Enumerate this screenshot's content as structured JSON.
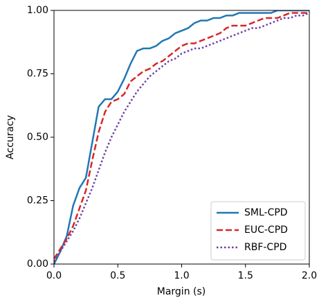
{
  "chart_data": {
    "type": "line",
    "x_label": "Margin (s)",
    "y_label": "Accuracy",
    "x": [
      0,
      0.05,
      0.1,
      0.15,
      0.2,
      0.25,
      0.3,
      0.35,
      0.4,
      0.45,
      0.5,
      0.55,
      0.6,
      0.65,
      0.7,
      0.75,
      0.8,
      0.85,
      0.9,
      0.95,
      1.0,
      1.05,
      1.1,
      1.15,
      1.2,
      1.25,
      1.3,
      1.35,
      1.4,
      1.45,
      1.5,
      1.55,
      1.6,
      1.65,
      1.7,
      1.75,
      1.8,
      1.85,
      1.9,
      1.95,
      2.0
    ],
    "series": [
      {
        "name": "SML-CPD",
        "color": "#1f77b4",
        "style": "solid",
        "values": [
          0.0,
          0.05,
          0.11,
          0.23,
          0.3,
          0.34,
          0.48,
          0.62,
          0.65,
          0.65,
          0.68,
          0.73,
          0.79,
          0.84,
          0.85,
          0.85,
          0.86,
          0.88,
          0.89,
          0.91,
          0.92,
          0.93,
          0.95,
          0.96,
          0.96,
          0.97,
          0.97,
          0.98,
          0.98,
          0.99,
          0.99,
          0.99,
          0.99,
          0.99,
          0.99,
          1.0,
          1.0,
          1.0,
          1.0,
          1.0,
          1.0
        ]
      },
      {
        "name": "EUC-CPD",
        "color": "#d62728",
        "style": "dashed",
        "values": [
          0.02,
          0.06,
          0.1,
          0.15,
          0.22,
          0.29,
          0.41,
          0.52,
          0.6,
          0.64,
          0.65,
          0.67,
          0.72,
          0.74,
          0.76,
          0.77,
          0.79,
          0.8,
          0.82,
          0.84,
          0.86,
          0.87,
          0.87,
          0.88,
          0.89,
          0.9,
          0.91,
          0.93,
          0.94,
          0.94,
          0.94,
          0.95,
          0.96,
          0.97,
          0.97,
          0.97,
          0.98,
          0.99,
          0.99,
          0.99,
          0.99
        ]
      },
      {
        "name": "RBF-CPD",
        "color": "#6f3fa3",
        "style": "dotted",
        "values": [
          0.01,
          0.05,
          0.09,
          0.13,
          0.18,
          0.24,
          0.3,
          0.37,
          0.44,
          0.5,
          0.55,
          0.6,
          0.64,
          0.68,
          0.71,
          0.74,
          0.76,
          0.78,
          0.8,
          0.81,
          0.83,
          0.84,
          0.85,
          0.85,
          0.86,
          0.87,
          0.88,
          0.89,
          0.9,
          0.91,
          0.92,
          0.93,
          0.93,
          0.94,
          0.95,
          0.96,
          0.97,
          0.97,
          0.98,
          0.98,
          0.99
        ]
      }
    ],
    "xlim": [
      0,
      2.0
    ],
    "ylim": [
      0,
      1.0
    ],
    "xticks": [
      {
        "value": 0,
        "label": "0.0"
      },
      {
        "value": 0.5,
        "label": "0.5"
      },
      {
        "value": 1.0,
        "label": "1.0"
      },
      {
        "value": 1.5,
        "label": "1.5"
      },
      {
        "value": 2.0,
        "label": "2.0"
      }
    ],
    "yticks": [
      {
        "value": 0,
        "label": "0.00"
      },
      {
        "value": 0.25,
        "label": "0.25"
      },
      {
        "value": 0.5,
        "label": "0.50"
      },
      {
        "value": 0.75,
        "label": "0.75"
      },
      {
        "value": 1.0,
        "label": "1.00"
      }
    ],
    "grid": false,
    "legend_position": "lower-right"
  }
}
